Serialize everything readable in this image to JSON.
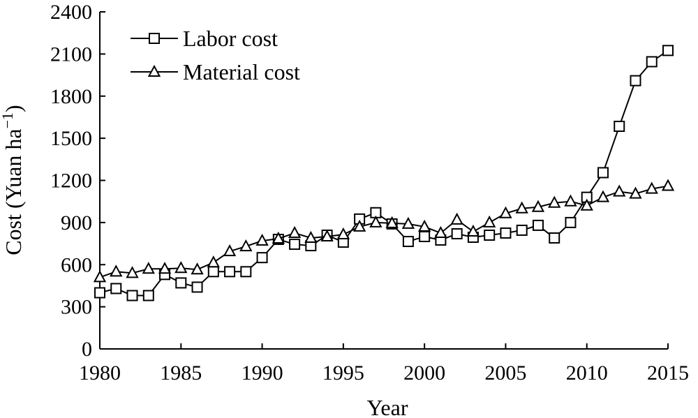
{
  "chart_data": {
    "type": "line",
    "title": "",
    "xlabel": "Year",
    "ylabel_main": "Cost (Yuan ha",
    "ylabel_sup": "−1",
    "ylabel_close": ")",
    "xlim": [
      1980,
      2015
    ],
    "ylim": [
      0,
      2400
    ],
    "xticks": [
      1980,
      1985,
      1990,
      1995,
      2000,
      2005,
      2010,
      2015
    ],
    "yticks": [
      0,
      300,
      600,
      900,
      1200,
      1500,
      1800,
      2100,
      2400
    ],
    "grid": false,
    "legend_position": "top-left",
    "x": [
      1980,
      1981,
      1982,
      1983,
      1984,
      1985,
      1986,
      1987,
      1988,
      1989,
      1990,
      1991,
      1992,
      1993,
      1994,
      1995,
      1996,
      1997,
      1998,
      1999,
      2000,
      2001,
      2002,
      2003,
      2004,
      2005,
      2006,
      2007,
      2008,
      2009,
      2010,
      2011,
      2012,
      2013,
      2014,
      2015
    ],
    "series": [
      {
        "name": "Labor cost",
        "marker": "square",
        "values": [
          400,
          430,
          380,
          380,
          530,
          470,
          440,
          550,
          550,
          550,
          650,
          780,
          745,
          735,
          810,
          760,
          925,
          970,
          890,
          765,
          800,
          775,
          820,
          795,
          810,
          825,
          845,
          880,
          790,
          900,
          1080,
          1255,
          1585,
          1910,
          2045,
          2125
        ]
      },
      {
        "name": "Material cost",
        "marker": "triangle",
        "values": [
          510,
          550,
          540,
          570,
          570,
          575,
          565,
          615,
          695,
          730,
          770,
          785,
          825,
          790,
          800,
          815,
          870,
          900,
          895,
          890,
          870,
          825,
          920,
          835,
          900,
          965,
          1000,
          1010,
          1040,
          1050,
          1020,
          1080,
          1120,
          1105,
          1140,
          1160
        ]
      }
    ]
  }
}
